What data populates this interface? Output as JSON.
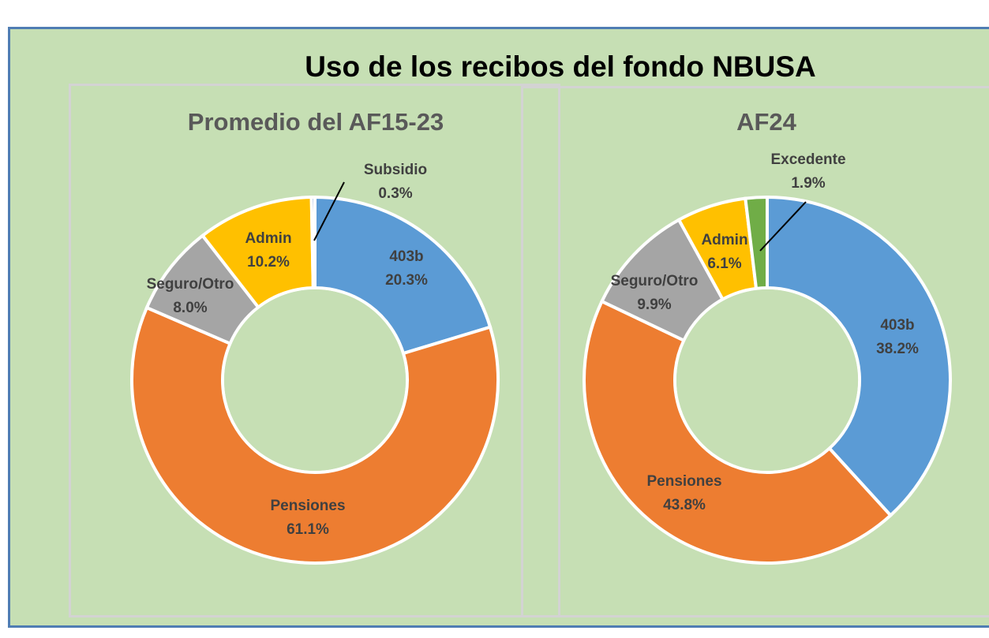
{
  "title": "Uso de los recibos del fondo NBUSA",
  "chart_data": [
    {
      "type": "pie",
      "title": "Promedio del AF15-23",
      "labels": [
        "403b",
        "Pensiones",
        "Seguro/Otro",
        "Admin",
        "Subsidio"
      ],
      "values": [
        20.3,
        61.1,
        8.0,
        10.2,
        0.3
      ],
      "value_labels": [
        "20.3%",
        "61.1%",
        "8.0%",
        "10.2%",
        "0.3%"
      ],
      "colors": [
        "#5b9bd5",
        "#ed7d31",
        "#a5a5a5",
        "#ffc000",
        "#4472c4"
      ],
      "donut": true
    },
    {
      "type": "pie",
      "title": "AF24",
      "labels": [
        "403b",
        "Pensiones",
        "Seguro/Otro",
        "Admin",
        "Excedente"
      ],
      "values": [
        38.2,
        43.8,
        9.9,
        6.1,
        1.9
      ],
      "value_labels": [
        "38.2%",
        "43.8%",
        "9.9%",
        "6.1%",
        "1.9%"
      ],
      "colors": [
        "#5b9bd5",
        "#ed7d31",
        "#a5a5a5",
        "#ffc000",
        "#70ad47"
      ],
      "donut": true
    }
  ]
}
